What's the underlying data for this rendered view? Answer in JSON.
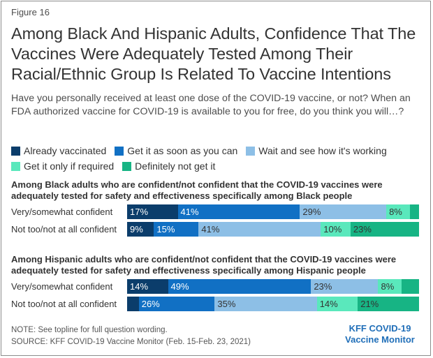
{
  "figure_label": "Figure 16",
  "title": "Among Black And Hispanic Adults, Confidence That The Vaccines Were Adequately Tested Among Their Racial/Ethnic Group Is Related To Vaccine Intentions",
  "question": "Have you personally received at least one dose of the COVID-19 vaccine, or not? When an FDA authorized vaccine for COVID-19 is available to you for free, do you think you will…?",
  "legend": [
    {
      "label": "Already vaccinated",
      "color": "#0b3d6b"
    },
    {
      "label": "Get it as soon as you can",
      "color": "#1170c4"
    },
    {
      "label": "Wait and see how it's working",
      "color": "#8dbfe6"
    },
    {
      "label": "Get it only if required",
      "color": "#5ae8bc"
    },
    {
      "label": "Definitely not get it",
      "color": "#17b484"
    }
  ],
  "chart_data": {
    "type": "bar",
    "orientation": "horizontal",
    "stacked": true,
    "groups": [
      {
        "title": "Among Black adults who are confident/not confident that the COVID-19 vaccines were adequately tested for safety and effectiveness specifically among Black people",
        "rows": [
          {
            "label": "Very/somewhat confident",
            "values": [
              17,
              41,
              29,
              8,
              3
            ],
            "labels": [
              "17%",
              "41%",
              "29%",
              "8%",
              ""
            ]
          },
          {
            "label": "Not too/not at all confident",
            "values": [
              9,
              15,
              41,
              10,
              23
            ],
            "labels": [
              "9%",
              "15%",
              "41%",
              "10%",
              "23%"
            ]
          }
        ]
      },
      {
        "title": "Among Hispanic adults who are confident/not confident that the COVID-19 vaccines were adequately tested for safety and effectiveness specifically among Hispanic people",
        "rows": [
          {
            "label": "Very/somewhat confident",
            "values": [
              14,
              49,
              23,
              8,
              6
            ],
            "labels": [
              "14%",
              "49%",
              "23%",
              "8%",
              ""
            ]
          },
          {
            "label": "Not too/not at all confident",
            "values": [
              4,
              26,
              35,
              14,
              21
            ],
            "labels": [
              "",
              "26%",
              "35%",
              "14%",
              "21%"
            ]
          }
        ]
      }
    ]
  },
  "footer": {
    "note": "NOTE: See topline for full question wording.",
    "source": "SOURCE: KFF COVID-19 Vaccine Monitor (Feb. 15-Feb. 23, 2021)"
  },
  "brand": {
    "line1": "KFF COVID-19",
    "line2": "Vaccine Monitor"
  }
}
